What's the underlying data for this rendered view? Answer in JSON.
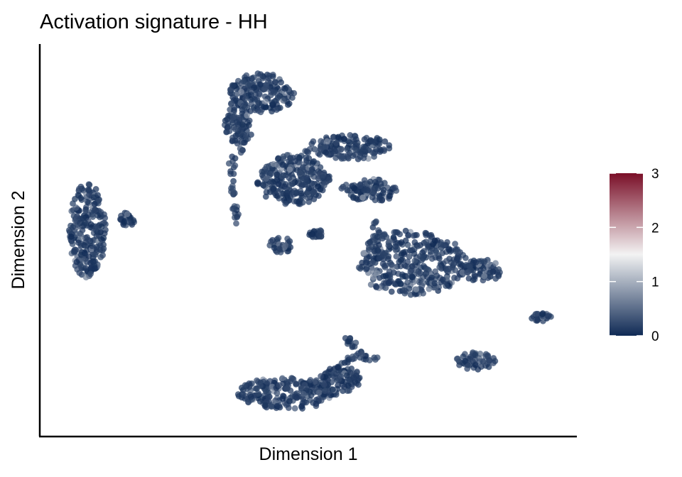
{
  "chart_data": {
    "type": "scatter",
    "title": "Activation signature - HH",
    "xlabel": "Dimension 1",
    "ylabel": "Dimension 2",
    "xlim": [
      0,
      100
    ],
    "ylim": [
      0,
      100
    ],
    "axis_ticks": false,
    "grid": false,
    "point_color_value": 0,
    "colorbar": {
      "range": [
        0,
        3
      ],
      "ticks": [
        "0",
        "1",
        "2",
        "3"
      ],
      "colors": {
        "low": "#0f2a55",
        "mid": "#f3f3f3",
        "high": "#7a0f28"
      },
      "placement": "right"
    },
    "clusters": [
      {
        "id": "c01",
        "shape": "blob",
        "x": 5,
        "y": 53,
        "rx": 3.7,
        "ry": 13
      },
      {
        "id": "c02",
        "shape": "blob",
        "x": 13,
        "y": 56,
        "rx": 1.5,
        "ry": 2.2
      },
      {
        "id": "c03",
        "shape": "blob",
        "x": 40,
        "y": 91,
        "rx": 6.5,
        "ry": 5.5
      },
      {
        "id": "c04",
        "shape": "blob",
        "x": 35,
        "y": 83,
        "rx": 2.5,
        "ry": 6
      },
      {
        "id": "c05",
        "shape": "trail",
        "points": [
          [
            38,
            80
          ],
          [
            34,
            72
          ],
          [
            34,
            63
          ],
          [
            35,
            55
          ]
        ]
      },
      {
        "id": "c06",
        "shape": "blob",
        "x": 46,
        "y": 67,
        "rx": 7,
        "ry": 7
      },
      {
        "id": "c07",
        "shape": "blob",
        "x": 58,
        "y": 76,
        "rx": 8,
        "ry": 3.5
      },
      {
        "id": "c08",
        "shape": "blob",
        "x": 62,
        "y": 64,
        "rx": 5,
        "ry": 3.2
      },
      {
        "id": "c09",
        "shape": "trail",
        "points": [
          [
            50,
            69
          ],
          [
            57,
            65
          ],
          [
            62,
            64
          ]
        ]
      },
      {
        "id": "c10",
        "shape": "trail",
        "points": [
          [
            49,
            75
          ],
          [
            50,
            78
          ]
        ]
      },
      {
        "id": "c11",
        "shape": "blob",
        "x": 44,
        "y": 49,
        "rx": 2.6,
        "ry": 2.2
      },
      {
        "id": "c12",
        "shape": "blob",
        "x": 51,
        "y": 52,
        "rx": 1.5,
        "ry": 1.2
      },
      {
        "id": "c13",
        "shape": "blob",
        "x": 70,
        "y": 44,
        "rx": 11,
        "ry": 9
      },
      {
        "id": "c14",
        "shape": "trail",
        "points": [
          [
            62,
            56
          ],
          [
            63,
            52
          ],
          [
            66,
            51
          ]
        ]
      },
      {
        "id": "c15",
        "shape": "blob",
        "x": 84,
        "y": 42,
        "rx": 4.5,
        "ry": 3
      },
      {
        "id": "c16",
        "shape": "blob",
        "x": 96,
        "y": 29,
        "rx": 2,
        "ry": 1.2
      },
      {
        "id": "c17",
        "shape": "blob",
        "x": 83,
        "y": 17,
        "rx": 4,
        "ry": 2.5
      },
      {
        "id": "c18",
        "shape": "blob",
        "x": 45,
        "y": 8,
        "rx": 10,
        "ry": 4.5
      },
      {
        "id": "c19",
        "shape": "blob",
        "x": 56,
        "y": 12,
        "rx": 4,
        "ry": 3.5
      },
      {
        "id": "c20",
        "shape": "trail",
        "points": [
          [
            51,
            12
          ],
          [
            56,
            16
          ],
          [
            60,
            19
          ],
          [
            58,
            22
          ],
          [
            56,
            24
          ]
        ]
      },
      {
        "id": "c21",
        "shape": "trail",
        "points": [
          [
            58,
            19
          ],
          [
            63,
            17
          ]
        ]
      }
    ]
  }
}
